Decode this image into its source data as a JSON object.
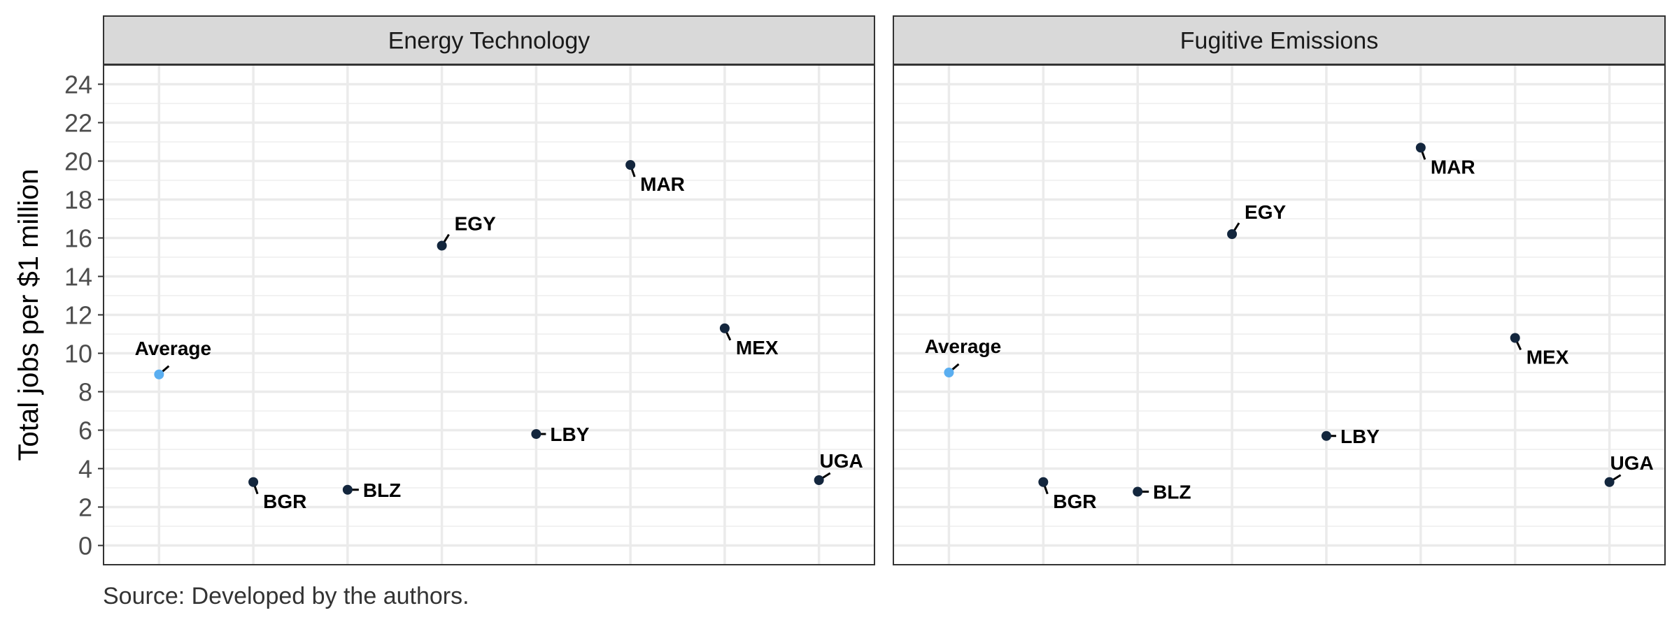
{
  "chart_data": {
    "type": "scatter",
    "ylabel": "Total jobs per $1 million",
    "ylim": [
      -1,
      25
    ],
    "yticks": [
      0,
      2,
      4,
      6,
      8,
      10,
      12,
      14,
      16,
      18,
      20,
      22,
      24
    ],
    "grid": true,
    "x_positions": 8,
    "colors": {
      "point": "#13263d",
      "average": "#5aaef0",
      "panel_border": "#333333",
      "strip_fill": "#d9d9d9",
      "grid": "#ebebeb"
    },
    "panels": [
      {
        "title": "Energy Technology",
        "points": [
          {
            "label": "Average",
            "x": 1,
            "y": 8.9,
            "highlight": true
          },
          {
            "label": "BGR",
            "x": 2,
            "y": 3.3
          },
          {
            "label": "BLZ",
            "x": 3,
            "y": 2.9
          },
          {
            "label": "EGY",
            "x": 4,
            "y": 15.6
          },
          {
            "label": "LBY",
            "x": 5,
            "y": 5.8
          },
          {
            "label": "MAR",
            "x": 6,
            "y": 19.8
          },
          {
            "label": "MEX",
            "x": 7,
            "y": 11.3
          },
          {
            "label": "UGA",
            "x": 8,
            "y": 3.4
          }
        ]
      },
      {
        "title": "Fugitive Emissions",
        "points": [
          {
            "label": "Average",
            "x": 1,
            "y": 9.0,
            "highlight": true
          },
          {
            "label": "BGR",
            "x": 2,
            "y": 3.3
          },
          {
            "label": "BLZ",
            "x": 3,
            "y": 2.8
          },
          {
            "label": "EGY",
            "x": 4,
            "y": 16.2
          },
          {
            "label": "LBY",
            "x": 5,
            "y": 5.7
          },
          {
            "label": "MAR",
            "x": 6,
            "y": 20.7
          },
          {
            "label": "MEX",
            "x": 7,
            "y": 10.8
          },
          {
            "label": "UGA",
            "x": 8,
            "y": 3.3
          }
        ]
      }
    ]
  },
  "caption": "Source: Developed by the authors."
}
